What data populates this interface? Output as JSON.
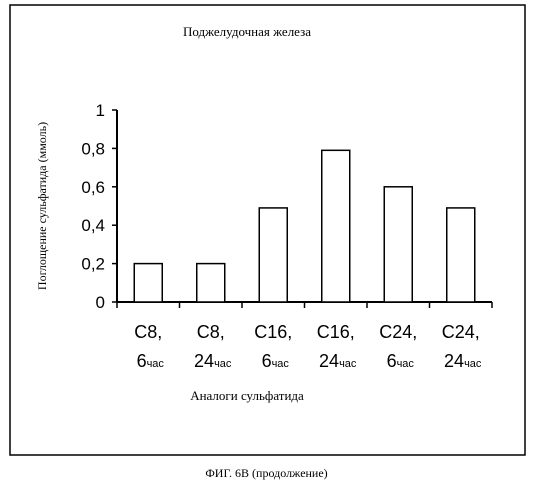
{
  "chart_data": {
    "type": "bar",
    "title": "Поджелудочная железа",
    "ylabel": "Поглощение сульфатида (ммоль)",
    "xlabel": "Аналоги сульфатида",
    "categories": [
      {
        "top": "C8,",
        "num": "6",
        "unit": "час"
      },
      {
        "top": "C8,",
        "num": "24",
        "unit": "час"
      },
      {
        "top": "C16,",
        "num": "6",
        "unit": "час"
      },
      {
        "top": "C16,",
        "num": "24",
        "unit": "час"
      },
      {
        "top": "C24,",
        "num": "6",
        "unit": "час"
      },
      {
        "top": "C24,",
        "num": "24",
        "unit": "час"
      }
    ],
    "values": [
      0.2,
      0.2,
      0.49,
      0.79,
      0.6,
      0.49
    ],
    "ylim": [
      0,
      1
    ],
    "yticks": [
      {
        "value": 0,
        "label": "0"
      },
      {
        "value": 0.2,
        "label": "0,2"
      },
      {
        "value": 0.4,
        "label": "0,4"
      },
      {
        "value": 0.6,
        "label": "0,6"
      },
      {
        "value": 0.8,
        "label": "0,8"
      },
      {
        "value": 1,
        "label": "1"
      }
    ],
    "grid": false,
    "legend": "none"
  },
  "figure_caption": "ФИГ. 6В (продолжение)"
}
